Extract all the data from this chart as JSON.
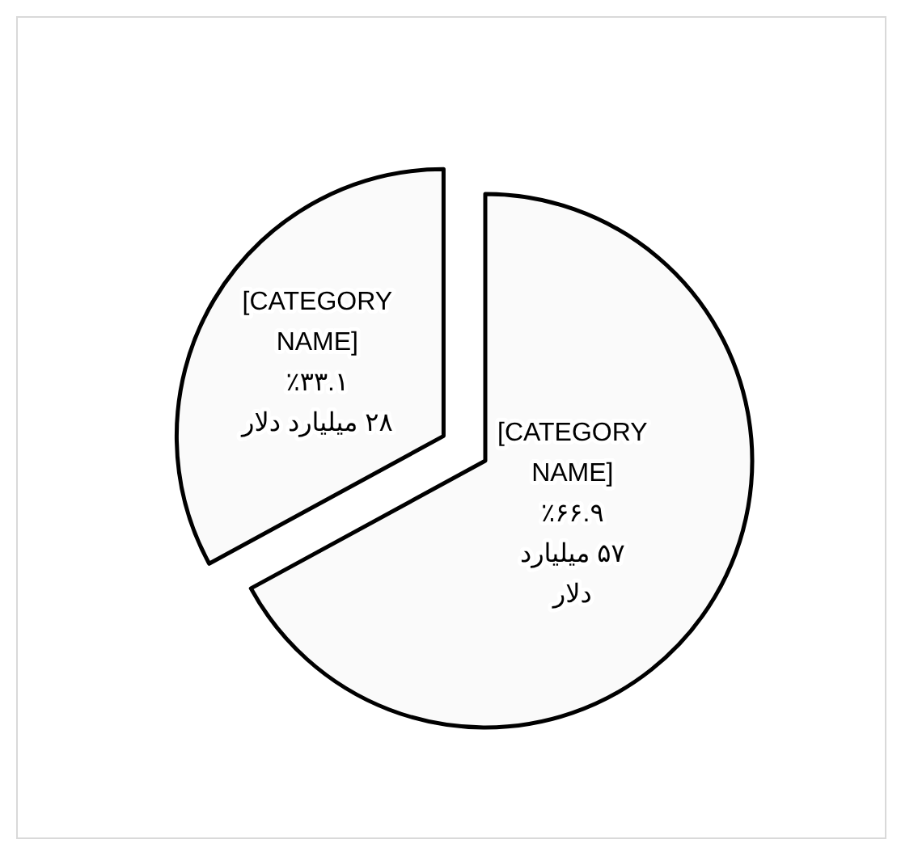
{
  "chart_data": {
    "type": "pie",
    "categories": [
      "[CATEGORY NAME]",
      "[CATEGORY NAME]"
    ],
    "values": [
      57,
      28
    ],
    "colors": [
      "#fafafa",
      "#fafafa"
    ],
    "value_labels": [
      "٪۶۶.۹\n۵۷ میلیارد دلار",
      "٪۳۳.۱\n۲۸ میلیارد دلار"
    ]
  }
}
